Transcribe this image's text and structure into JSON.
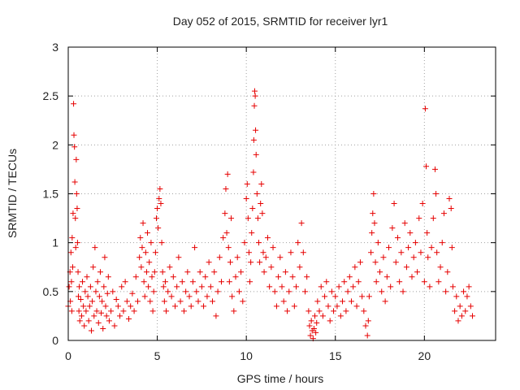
{
  "chart_data": {
    "type": "scatter",
    "title": "Day 052 of 2015, SRMTID for receiver lyr1",
    "xlabel": "GPS time / hours",
    "ylabel": "SRMTID / TECUs",
    "xlim": [
      0,
      24
    ],
    "ylim": [
      0,
      3
    ],
    "xticks": [
      0,
      5,
      10,
      15,
      20
    ],
    "xtick_labels": [
      "0",
      "5",
      "10",
      "15",
      "20"
    ],
    "yticks": [
      0,
      0.5,
      1,
      1.5,
      2,
      2.5,
      3
    ],
    "ytick_labels": [
      "0",
      "0.5",
      "1",
      "1.5",
      "2",
      "2.5",
      "3"
    ],
    "grid": true,
    "marker": "+",
    "series": [
      {
        "name": "lyr1",
        "color": "#e60000",
        "points": [
          [
            0.0,
            0.35
          ],
          [
            0.05,
            0.55
          ],
          [
            0.1,
            0.7
          ],
          [
            0.12,
            0.4
          ],
          [
            0.15,
            0.9
          ],
          [
            0.18,
            0.6
          ],
          [
            0.2,
            0.3
          ],
          [
            0.22,
            1.05
          ],
          [
            0.25,
            0.75
          ],
          [
            0.27,
            1.3
          ],
          [
            0.3,
            2.42
          ],
          [
            0.32,
            2.1
          ],
          [
            0.35,
            1.98
          ],
          [
            0.37,
            1.62
          ],
          [
            0.4,
            1.25
          ],
          [
            0.42,
            0.95
          ],
          [
            0.45,
            1.85
          ],
          [
            0.47,
            1.5
          ],
          [
            0.5,
            1.35
          ],
          [
            0.52,
            1.0
          ],
          [
            0.55,
            0.7
          ],
          [
            0.57,
            0.45
          ],
          [
            0.6,
            0.3
          ],
          [
            0.62,
            0.55
          ],
          [
            0.65,
            0.2
          ],
          [
            0.7,
            0.42
          ],
          [
            0.75,
            0.25
          ],
          [
            0.8,
            0.6
          ],
          [
            0.85,
            0.35
          ],
          [
            0.9,
            0.15
          ],
          [
            0.95,
            0.5
          ],
          [
            1.0,
            0.3
          ],
          [
            1.05,
            0.65
          ],
          [
            1.1,
            0.45
          ],
          [
            1.15,
            0.2
          ],
          [
            1.2,
            0.35
          ],
          [
            1.25,
            0.55
          ],
          [
            1.3,
            0.1
          ],
          [
            1.35,
            0.4
          ],
          [
            1.4,
            0.75
          ],
          [
            1.45,
            0.25
          ],
          [
            1.5,
            0.95
          ],
          [
            1.55,
            0.5
          ],
          [
            1.6,
            0.3
          ],
          [
            1.65,
            0.6
          ],
          [
            1.7,
            0.18
          ],
          [
            1.75,
            0.45
          ],
          [
            1.8,
            0.7
          ],
          [
            1.85,
            0.28
          ],
          [
            1.9,
            0.4
          ],
          [
            1.95,
            0.12
          ],
          [
            2.0,
            0.55
          ],
          [
            2.05,
            0.85
          ],
          [
            2.1,
            0.35
          ],
          [
            2.15,
            0.25
          ],
          [
            2.2,
            0.48
          ],
          [
            2.25,
            0.65
          ],
          [
            2.3,
            0.2
          ],
          [
            2.4,
            0.3
          ],
          [
            2.5,
            0.5
          ],
          [
            2.6,
            0.15
          ],
          [
            2.7,
            0.42
          ],
          [
            2.8,
            0.35
          ],
          [
            2.9,
            0.25
          ],
          [
            3.0,
            0.55
          ],
          [
            3.1,
            0.3
          ],
          [
            3.2,
            0.6
          ],
          [
            3.3,
            0.4
          ],
          [
            3.4,
            0.22
          ],
          [
            3.5,
            0.35
          ],
          [
            3.6,
            0.48
          ],
          [
            3.7,
            0.3
          ],
          [
            3.8,
            0.65
          ],
          [
            3.9,
            0.4
          ],
          [
            4.0,
            0.85
          ],
          [
            4.05,
            1.05
          ],
          [
            4.1,
            0.75
          ],
          [
            4.15,
            0.95
          ],
          [
            4.2,
            1.2
          ],
          [
            4.25,
            0.6
          ],
          [
            4.3,
            0.45
          ],
          [
            4.35,
            0.9
          ],
          [
            4.4,
            0.7
          ],
          [
            4.45,
            1.1
          ],
          [
            4.5,
            0.55
          ],
          [
            4.55,
            0.8
          ],
          [
            4.6,
            0.4
          ],
          [
            4.65,
            1.0
          ],
          [
            4.7,
            0.65
          ],
          [
            4.75,
            0.3
          ],
          [
            4.8,
            0.5
          ],
          [
            4.85,
            0.7
          ],
          [
            4.9,
            0.9
          ],
          [
            4.95,
            1.25
          ],
          [
            5.0,
            1.35
          ],
          [
            5.05,
            1.15
          ],
          [
            5.1,
            1.45
          ],
          [
            5.15,
            1.55
          ],
          [
            5.2,
            1.4
          ],
          [
            5.25,
            1.0
          ],
          [
            5.3,
            0.7
          ],
          [
            5.35,
            0.55
          ],
          [
            5.4,
            0.4
          ],
          [
            5.45,
            0.6
          ],
          [
            5.5,
            0.3
          ],
          [
            5.6,
            0.5
          ],
          [
            5.7,
            0.75
          ],
          [
            5.8,
            0.45
          ],
          [
            5.9,
            0.65
          ],
          [
            6.0,
            0.35
          ],
          [
            6.1,
            0.55
          ],
          [
            6.2,
            0.85
          ],
          [
            6.3,
            0.4
          ],
          [
            6.4,
            0.6
          ],
          [
            6.5,
            0.3
          ],
          [
            6.6,
            0.5
          ],
          [
            6.7,
            0.7
          ],
          [
            6.8,
            0.45
          ],
          [
            6.9,
            0.35
          ],
          [
            7.0,
            0.6
          ],
          [
            7.1,
            0.95
          ],
          [
            7.2,
            0.5
          ],
          [
            7.3,
            0.4
          ],
          [
            7.4,
            0.7
          ],
          [
            7.5,
            0.55
          ],
          [
            7.6,
            0.35
          ],
          [
            7.7,
            0.65
          ],
          [
            7.8,
            0.45
          ],
          [
            7.9,
            0.8
          ],
          [
            8.0,
            0.55
          ],
          [
            8.1,
            0.4
          ],
          [
            8.2,
            0.7
          ],
          [
            8.3,
            0.25
          ],
          [
            8.4,
            0.5
          ],
          [
            8.5,
            0.85
          ],
          [
            8.6,
            0.6
          ],
          [
            8.7,
            1.05
          ],
          [
            8.8,
            1.3
          ],
          [
            8.85,
            1.55
          ],
          [
            8.9,
            1.1
          ],
          [
            8.95,
            1.7
          ],
          [
            9.0,
            0.95
          ],
          [
            9.05,
            0.6
          ],
          [
            9.1,
            0.8
          ],
          [
            9.15,
            1.25
          ],
          [
            9.2,
            0.45
          ],
          [
            9.3,
            0.3
          ],
          [
            9.4,
            0.65
          ],
          [
            9.5,
            0.85
          ],
          [
            9.6,
            0.5
          ],
          [
            9.7,
            0.7
          ],
          [
            9.8,
            0.4
          ],
          [
            9.9,
            1.0
          ],
          [
            10.0,
            1.45
          ],
          [
            10.05,
            1.6
          ],
          [
            10.1,
            1.25
          ],
          [
            10.15,
            0.9
          ],
          [
            10.2,
            0.6
          ],
          [
            10.25,
            0.8
          ],
          [
            10.3,
            1.1
          ],
          [
            10.35,
            1.35
          ],
          [
            10.4,
            1.72
          ],
          [
            10.42,
            2.05
          ],
          [
            10.45,
            2.4
          ],
          [
            10.47,
            2.55
          ],
          [
            10.5,
            2.5
          ],
          [
            10.52,
            2.15
          ],
          [
            10.55,
            1.9
          ],
          [
            10.6,
            1.5
          ],
          [
            10.65,
            1.25
          ],
          [
            10.7,
            1.0
          ],
          [
            10.75,
            0.8
          ],
          [
            10.8,
            1.4
          ],
          [
            10.85,
            1.6
          ],
          [
            10.9,
            1.3
          ],
          [
            10.95,
            0.9
          ],
          [
            11.0,
            0.7
          ],
          [
            11.1,
            0.85
          ],
          [
            11.2,
            1.05
          ],
          [
            11.3,
            0.55
          ],
          [
            11.4,
            0.75
          ],
          [
            11.5,
            0.95
          ],
          [
            11.6,
            0.5
          ],
          [
            11.7,
            0.35
          ],
          [
            11.8,
            0.65
          ],
          [
            11.9,
            0.85
          ],
          [
            12.0,
            0.55
          ],
          [
            12.1,
            0.4
          ],
          [
            12.2,
            0.7
          ],
          [
            12.3,
            0.3
          ],
          [
            12.4,
            0.5
          ],
          [
            12.5,
            0.9
          ],
          [
            12.6,
            0.65
          ],
          [
            12.7,
            0.35
          ],
          [
            12.8,
            0.55
          ],
          [
            12.9,
            1.0
          ],
          [
            13.0,
            0.75
          ],
          [
            13.1,
            1.2
          ],
          [
            13.2,
            0.9
          ],
          [
            13.3,
            0.5
          ],
          [
            13.4,
            0.65
          ],
          [
            13.5,
            0.3
          ],
          [
            13.55,
            0.15
          ],
          [
            13.6,
            0.05
          ],
          [
            13.65,
            0.2
          ],
          [
            13.7,
            0.1
          ],
          [
            13.75,
            0.02
          ],
          [
            13.8,
            0.12
          ],
          [
            13.85,
            0.25
          ],
          [
            13.9,
            0.08
          ],
          [
            13.95,
            0.18
          ],
          [
            14.0,
            0.4
          ],
          [
            14.1,
            0.3
          ],
          [
            14.2,
            0.55
          ],
          [
            14.3,
            0.25
          ],
          [
            14.4,
            0.45
          ],
          [
            14.5,
            0.6
          ],
          [
            14.6,
            0.35
          ],
          [
            14.7,
            0.2
          ],
          [
            14.8,
            0.5
          ],
          [
            14.9,
            0.3
          ],
          [
            15.0,
            0.45
          ],
          [
            15.1,
            0.35
          ],
          [
            15.2,
            0.55
          ],
          [
            15.3,
            0.25
          ],
          [
            15.4,
            0.4
          ],
          [
            15.5,
            0.6
          ],
          [
            15.6,
            0.3
          ],
          [
            15.7,
            0.5
          ],
          [
            15.8,
            0.65
          ],
          [
            15.9,
            0.4
          ],
          [
            16.0,
            0.55
          ],
          [
            16.1,
            0.75
          ],
          [
            16.2,
            0.35
          ],
          [
            16.3,
            0.6
          ],
          [
            16.4,
            0.8
          ],
          [
            16.5,
            0.45
          ],
          [
            16.6,
            0.3
          ],
          [
            16.7,
            0.15
          ],
          [
            16.8,
            0.05
          ],
          [
            16.85,
            0.2
          ],
          [
            16.9,
            0.45
          ],
          [
            17.0,
            0.9
          ],
          [
            17.05,
            1.1
          ],
          [
            17.1,
            1.3
          ],
          [
            17.15,
            1.5
          ],
          [
            17.2,
            1.2
          ],
          [
            17.25,
            0.8
          ],
          [
            17.3,
            0.6
          ],
          [
            17.4,
            1.0
          ],
          [
            17.5,
            0.7
          ],
          [
            17.6,
            0.5
          ],
          [
            17.7,
            0.85
          ],
          [
            17.8,
            0.4
          ],
          [
            17.9,
            0.65
          ],
          [
            18.0,
            0.95
          ],
          [
            18.1,
            0.55
          ],
          [
            18.2,
            1.15
          ],
          [
            18.3,
            1.4
          ],
          [
            18.4,
            0.8
          ],
          [
            18.5,
            1.05
          ],
          [
            18.6,
            0.6
          ],
          [
            18.7,
            0.9
          ],
          [
            18.8,
            0.5
          ],
          [
            18.9,
            1.2
          ],
          [
            19.0,
            0.75
          ],
          [
            19.1,
            0.95
          ],
          [
            19.2,
            1.1
          ],
          [
            19.3,
            0.65
          ],
          [
            19.4,
            0.85
          ],
          [
            19.5,
            1.0
          ],
          [
            19.6,
            0.7
          ],
          [
            19.7,
            1.25
          ],
          [
            19.8,
            0.9
          ],
          [
            19.9,
            1.4
          ],
          [
            20.0,
            0.6
          ],
          [
            20.05,
            2.37
          ],
          [
            20.1,
            1.78
          ],
          [
            20.15,
            1.1
          ],
          [
            20.2,
            0.85
          ],
          [
            20.3,
            0.55
          ],
          [
            20.4,
            0.95
          ],
          [
            20.5,
            1.25
          ],
          [
            20.6,
            1.75
          ],
          [
            20.65,
            1.5
          ],
          [
            20.7,
            0.9
          ],
          [
            20.8,
            0.6
          ],
          [
            20.9,
            0.75
          ],
          [
            21.0,
            1.0
          ],
          [
            21.1,
            1.3
          ],
          [
            21.2,
            0.5
          ],
          [
            21.3,
            0.7
          ],
          [
            21.4,
            1.45
          ],
          [
            21.5,
            1.35
          ],
          [
            21.55,
            0.95
          ],
          [
            21.6,
            0.55
          ],
          [
            21.7,
            0.3
          ],
          [
            21.8,
            0.45
          ],
          [
            21.9,
            0.2
          ],
          [
            22.0,
            0.35
          ],
          [
            22.1,
            0.25
          ],
          [
            22.2,
            0.5
          ],
          [
            22.3,
            0.3
          ],
          [
            22.4,
            0.45
          ],
          [
            22.5,
            0.55
          ],
          [
            22.6,
            0.35
          ],
          [
            22.7,
            0.25
          ]
        ]
      }
    ]
  }
}
